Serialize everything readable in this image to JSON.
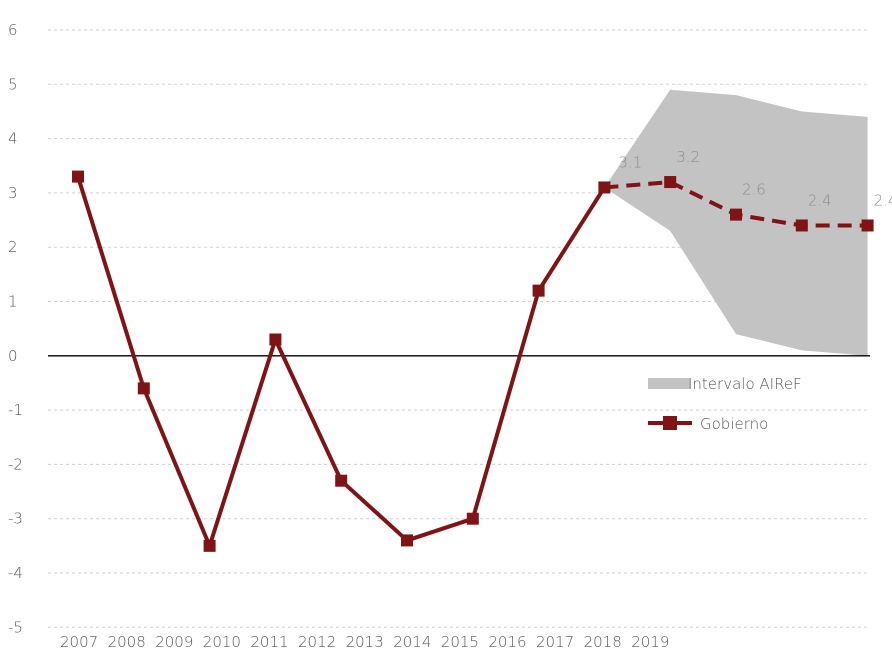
{
  "chart_data": {
    "type": "line",
    "title": "",
    "xlabel": "",
    "ylabel": "",
    "ylim": [
      -5,
      6
    ],
    "yticks": [
      6,
      5,
      4,
      3,
      2,
      1,
      0,
      -1,
      -2,
      -3,
      -4,
      -5
    ],
    "x_tick_labels": [
      "2007",
      "2008",
      "2009",
      "2010",
      "2011",
      "2012",
      "2013",
      "2014",
      "2015",
      "2016",
      "2017",
      "2018",
      "2019"
    ],
    "grid": "horizontal dashed",
    "legend_position": "right",
    "colors": {
      "gobierno": "#7f1416",
      "interval": "#c3c3c3",
      "zero_line": "#000000",
      "grid": "#d0d0d0"
    },
    "series": [
      {
        "name": "Gobierno",
        "style": "solid then dashed",
        "points": [
          {
            "t": 0,
            "y": 3.3
          },
          {
            "t": 1,
            "y": -0.6
          },
          {
            "t": 2,
            "y": -3.5
          },
          {
            "t": 3,
            "y": 0.3
          },
          {
            "t": 4,
            "y": -2.3
          },
          {
            "t": 5,
            "y": -3.4
          },
          {
            "t": 6,
            "y": -3.0
          },
          {
            "t": 7,
            "y": 1.2
          },
          {
            "t": 8,
            "y": 3.1,
            "label": "3.1"
          },
          {
            "t": 9,
            "y": 3.2,
            "label": "3.2"
          },
          {
            "t": 10,
            "y": 2.6,
            "label": "2.6"
          },
          {
            "t": 11,
            "y": 2.4,
            "label": "2.4"
          },
          {
            "t": 12,
            "y": 2.4,
            "label": "2.4"
          }
        ],
        "dashed_from_index": 8
      },
      {
        "name": "Intervalo AIReF",
        "type": "area_band",
        "points": [
          {
            "t": 8,
            "low": 3.1,
            "high": 3.1
          },
          {
            "t": 9,
            "low": 2.3,
            "high": 4.9
          },
          {
            "t": 10,
            "low": 0.4,
            "high": 4.8
          },
          {
            "t": 11,
            "low": 0.1,
            "high": 4.5
          },
          {
            "t": 12,
            "low": 0.0,
            "high": 4.4
          }
        ]
      }
    ]
  },
  "legend": {
    "interval_label": "Intervalo AIReF",
    "gobierno_label": "Gobierno"
  }
}
